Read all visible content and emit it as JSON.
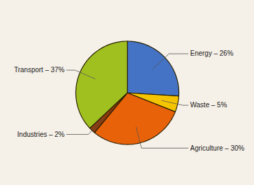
{
  "chart_data": {
    "type": "pie",
    "categories": [
      "Energy",
      "Waste",
      "Agriculture",
      "Industries",
      "Transport"
    ],
    "values": [
      26,
      5,
      30,
      2,
      37
    ],
    "value_labels": [
      "Energy – 26%",
      "Waste – 5%",
      "Agriculture – 30%",
      "Industries – 2%",
      "Transport – 37%"
    ],
    "colors": [
      "#4472C4",
      "#F5C400",
      "#E8620A",
      "#8B3A0F",
      "#A0C020"
    ],
    "data_labels": true
  }
}
